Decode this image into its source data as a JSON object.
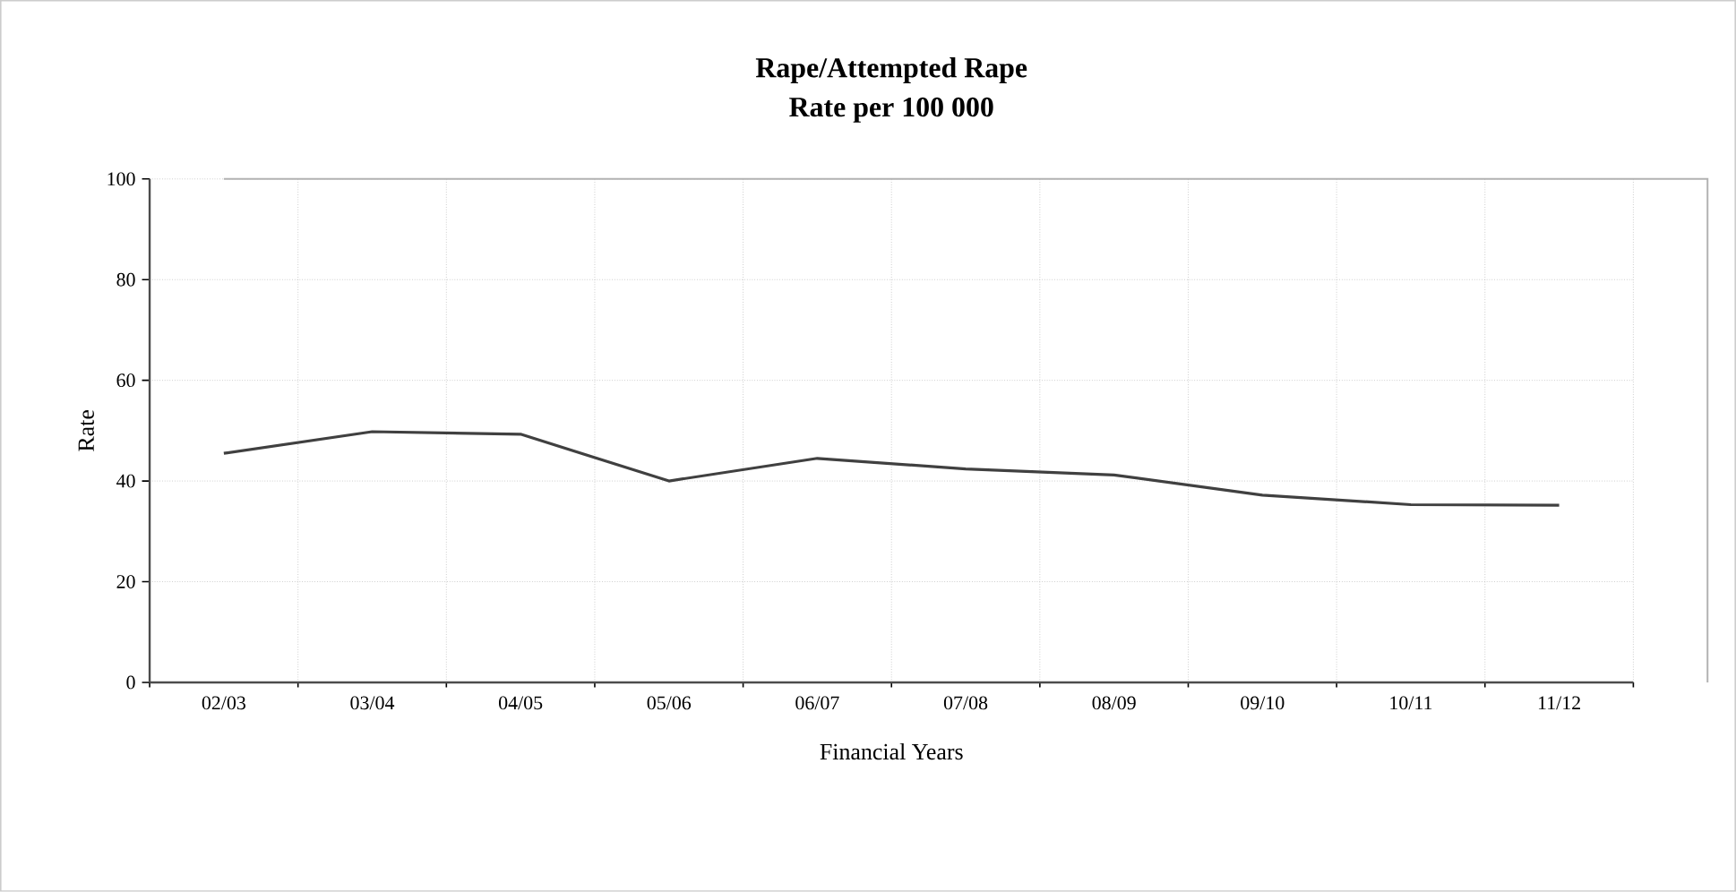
{
  "chart_data": {
    "type": "line",
    "title": "Rape/Attempted Rape",
    "subtitle": "Rate per 100 000",
    "xlabel": "Financial Years",
    "ylabel": "Rate",
    "categories": [
      "02/03",
      "03/04",
      "04/05",
      "05/06",
      "06/07",
      "07/08",
      "08/09",
      "09/10",
      "10/11",
      "11/12"
    ],
    "series": [
      {
        "color": "#404040",
        "values": [
          45.5,
          49.8,
          49.3,
          40.0,
          44.5,
          42.4,
          41.2,
          37.2,
          35.3,
          35.2
        ]
      }
    ],
    "ylim": [
      0,
      100
    ],
    "yticks": [
      0,
      20,
      40,
      60,
      80,
      100
    ],
    "grid": true,
    "marker": "none",
    "line_style": "solid"
  }
}
